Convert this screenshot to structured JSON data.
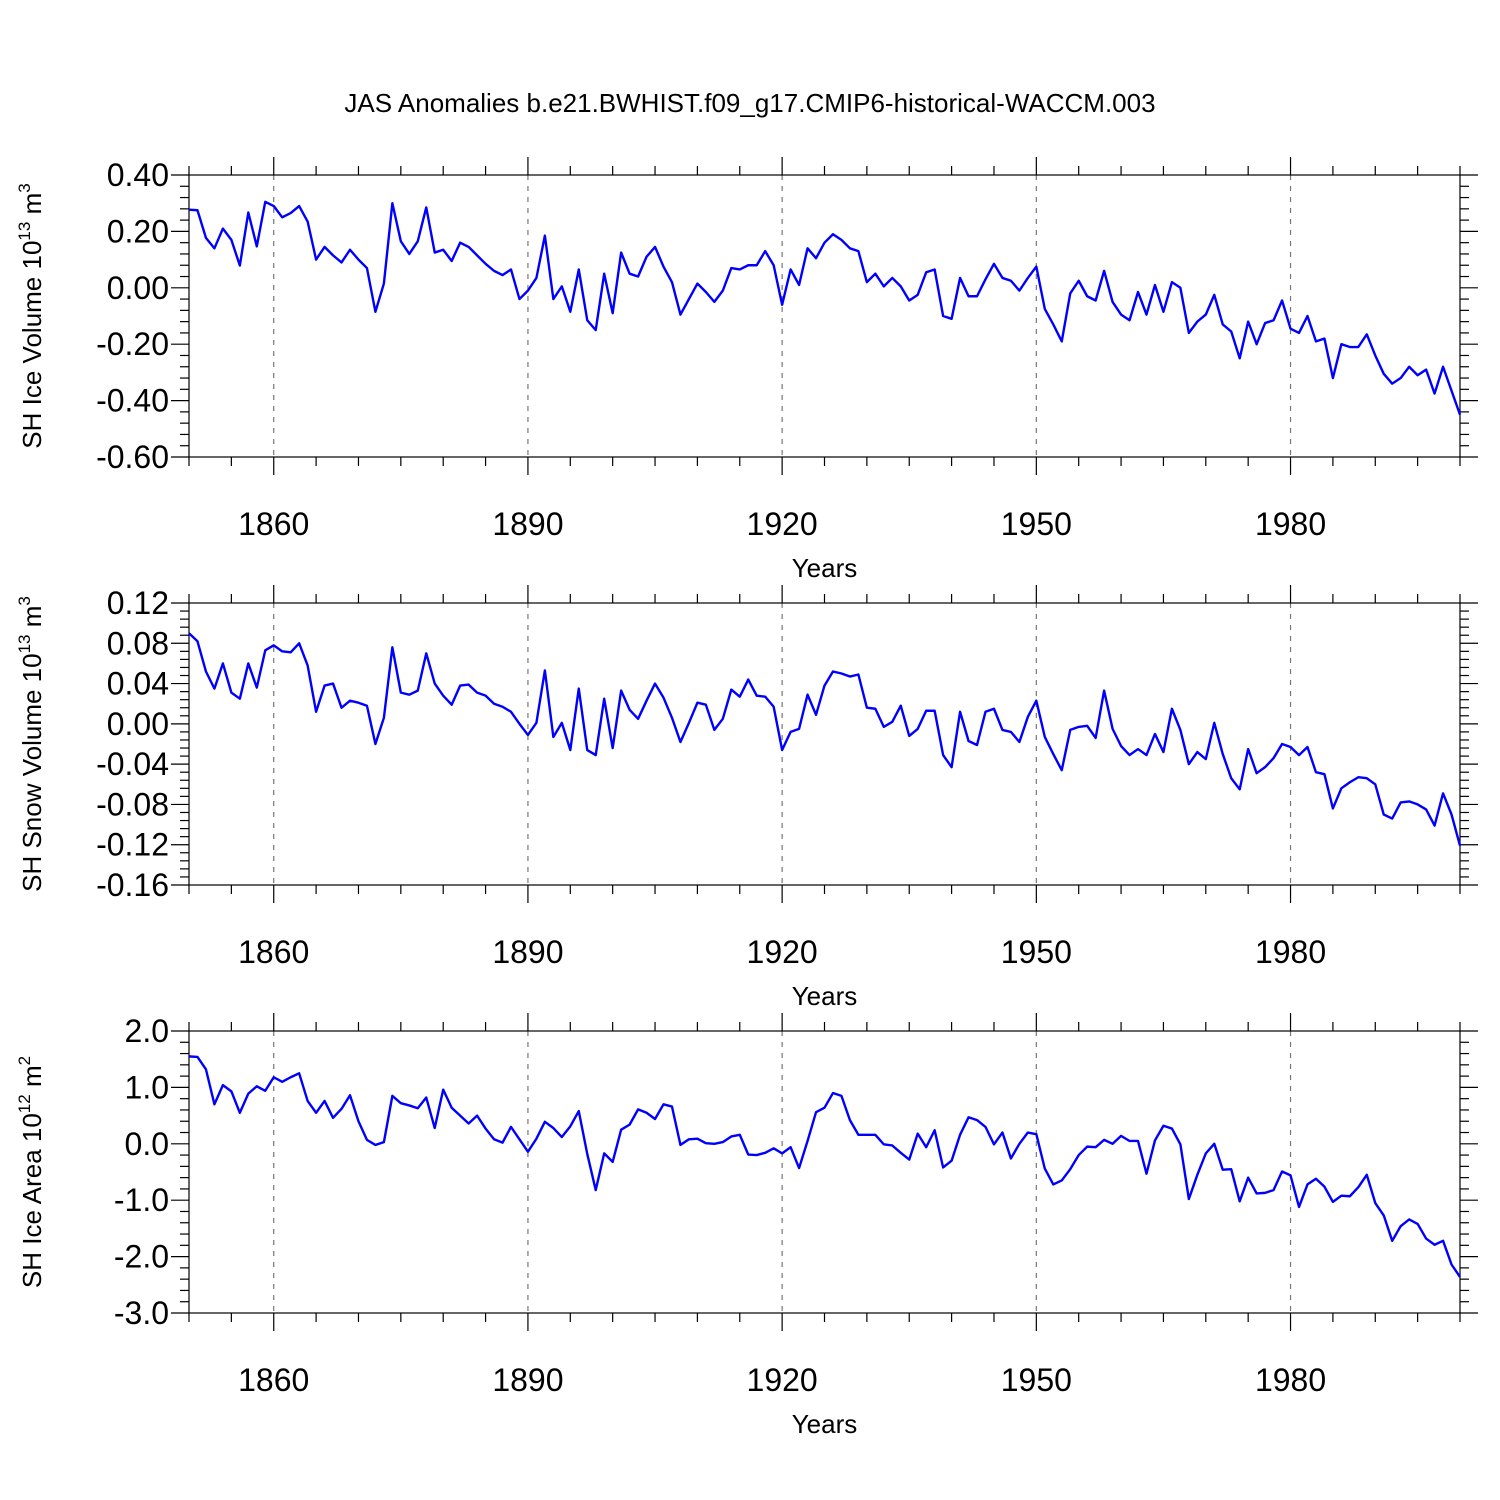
{
  "title": "JAS Anomalies b.e21.BWHIST.f09_g17.CMIP6-historical-WACCM.003",
  "colors": {
    "series": "#0000ff",
    "axis": "#000000",
    "grid": "#777777"
  },
  "chart_data": [
    {
      "type": "line",
      "id": "ice-volume",
      "ylabel_main": "SH Ice Volume 10",
      "ylabel_exp": "13",
      "ylabel_unit": " m",
      "ylabel_unit_exp": "3",
      "xlabel": "Years",
      "xlim": [
        1850,
        2000
      ],
      "ylim": [
        -0.6,
        0.4
      ],
      "grid": true,
      "x_ticks": [
        1860,
        1890,
        1920,
        1950,
        1980
      ],
      "x_tick_labels": [
        "1860",
        "1890",
        "1920",
        "1950",
        "1980"
      ],
      "y_ticks": [
        0.4,
        0.2,
        0.0,
        -0.2,
        -0.4,
        -0.6
      ],
      "y_tick_labels": [
        "0.40",
        "0.20",
        "0.00",
        "-0.20",
        "-0.40",
        "-0.60"
      ],
      "x_start": 1850,
      "values": [
        0.277,
        0.275,
        0.177,
        0.14,
        0.21,
        0.17,
        0.079,
        0.267,
        0.147,
        0.305,
        0.29,
        0.25,
        0.265,
        0.29,
        0.235,
        0.1,
        0.145,
        0.115,
        0.09,
        0.135,
        0.1,
        0.07,
        -0.085,
        0.015,
        0.3,
        0.165,
        0.12,
        0.165,
        0.285,
        0.125,
        0.135,
        0.095,
        0.16,
        0.145,
        0.115,
        0.085,
        0.06,
        0.045,
        0.065,
        -0.04,
        -0.01,
        0.035,
        0.185,
        -0.04,
        0.005,
        -0.085,
        0.065,
        -0.115,
        -0.15,
        0.05,
        -0.09,
        0.125,
        0.05,
        0.04,
        0.11,
        0.145,
        0.075,
        0.02,
        -0.095,
        -0.04,
        0.015,
        -0.015,
        -0.05,
        -0.01,
        0.07,
        0.065,
        0.08,
        0.08,
        0.13,
        0.08,
        -0.06,
        0.065,
        0.01,
        0.14,
        0.105,
        0.16,
        0.19,
        0.17,
        0.14,
        0.13,
        0.02,
        0.05,
        0.005,
        0.035,
        0.005,
        -0.045,
        -0.025,
        0.055,
        0.065,
        -0.1,
        -0.11,
        0.035,
        -0.03,
        -0.03,
        0.03,
        0.085,
        0.035,
        0.025,
        -0.01,
        0.035,
        0.075,
        -0.075,
        -0.13,
        -0.19,
        -0.02,
        0.025,
        -0.03,
        -0.045,
        0.06,
        -0.05,
        -0.095,
        -0.115,
        -0.015,
        -0.095,
        0.01,
        -0.085,
        0.02,
        0.0,
        -0.16,
        -0.12,
        -0.095,
        -0.025,
        -0.13,
        -0.155,
        -0.25,
        -0.12,
        -0.2,
        -0.125,
        -0.115,
        -0.045,
        -0.145,
        -0.16,
        -0.1,
        -0.19,
        -0.18,
        -0.32,
        -0.2,
        -0.21,
        -0.21,
        -0.165,
        -0.24,
        -0.305,
        -0.34,
        -0.32,
        -0.28,
        -0.31,
        -0.29,
        -0.375,
        -0.28,
        -0.365,
        -0.45
      ]
    },
    {
      "type": "line",
      "id": "snow-volume",
      "ylabel_main": "SH Snow Volume 10",
      "ylabel_exp": "13",
      "ylabel_unit": " m",
      "ylabel_unit_exp": "3",
      "xlabel": "Years",
      "xlim": [
        1850,
        2000
      ],
      "ylim": [
        -0.16,
        0.12
      ],
      "grid": true,
      "x_ticks": [
        1860,
        1890,
        1920,
        1950,
        1980
      ],
      "x_tick_labels": [
        "1860",
        "1890",
        "1920",
        "1950",
        "1980"
      ],
      "y_ticks": [
        0.12,
        0.08,
        0.04,
        0.0,
        -0.04,
        -0.08,
        -0.12,
        -0.16
      ],
      "y_tick_labels": [
        "0.12",
        "0.08",
        "0.04",
        "0.00",
        "-0.04",
        "-0.08",
        "-0.12",
        "-0.16"
      ],
      "x_start": 1850,
      "values": [
        0.09,
        0.082,
        0.052,
        0.035,
        0.06,
        0.031,
        0.025,
        0.06,
        0.036,
        0.073,
        0.078,
        0.072,
        0.071,
        0.08,
        0.058,
        0.012,
        0.038,
        0.04,
        0.016,
        0.023,
        0.021,
        0.018,
        -0.02,
        0.006,
        0.076,
        0.031,
        0.029,
        0.033,
        0.07,
        0.04,
        0.028,
        0.019,
        0.038,
        0.039,
        0.031,
        0.028,
        0.02,
        0.017,
        0.012,
        0.0,
        -0.011,
        0.001,
        0.053,
        -0.013,
        0.001,
        -0.026,
        0.035,
        -0.026,
        -0.031,
        0.025,
        -0.024,
        0.033,
        0.014,
        0.005,
        0.023,
        0.04,
        0.026,
        0.006,
        -0.018,
        0.001,
        0.021,
        0.019,
        -0.006,
        0.005,
        0.034,
        0.027,
        0.044,
        0.028,
        0.027,
        0.017,
        -0.026,
        -0.008,
        -0.005,
        0.029,
        0.009,
        0.038,
        0.052,
        0.05,
        0.047,
        0.049,
        0.016,
        0.015,
        -0.003,
        0.002,
        0.018,
        -0.012,
        -0.005,
        0.013,
        0.013,
        -0.031,
        -0.043,
        0.012,
        -0.017,
        -0.021,
        0.012,
        0.015,
        -0.006,
        -0.008,
        -0.018,
        0.007,
        0.023,
        -0.013,
        -0.03,
        -0.046,
        -0.006,
        -0.003,
        -0.002,
        -0.014,
        0.033,
        -0.005,
        -0.022,
        -0.031,
        -0.025,
        -0.031,
        -0.01,
        -0.028,
        0.015,
        -0.006,
        -0.04,
        -0.028,
        -0.035,
        0.001,
        -0.03,
        -0.054,
        -0.065,
        -0.025,
        -0.049,
        -0.043,
        -0.034,
        -0.02,
        -0.023,
        -0.031,
        -0.023,
        -0.048,
        -0.05,
        -0.084,
        -0.064,
        -0.058,
        -0.053,
        -0.054,
        -0.06,
        -0.09,
        -0.094,
        -0.078,
        -0.077,
        -0.08,
        -0.085,
        -0.101,
        -0.069,
        -0.09,
        -0.121
      ]
    },
    {
      "type": "line",
      "id": "ice-area",
      "ylabel_main": "SH Ice Area 10",
      "ylabel_exp": "12",
      "ylabel_unit": " m",
      "ylabel_unit_exp": "2",
      "xlabel": "Years",
      "xlim": [
        1850,
        2000
      ],
      "ylim": [
        -3.0,
        2.0
      ],
      "grid": true,
      "x_ticks": [
        1860,
        1890,
        1920,
        1950,
        1980
      ],
      "x_tick_labels": [
        "1860",
        "1890",
        "1920",
        "1950",
        "1980"
      ],
      "y_ticks": [
        2.0,
        1.0,
        0.0,
        -1.0,
        -2.0,
        -3.0
      ],
      "y_tick_labels": [
        "2.0",
        "1.0",
        "0.0",
        "-1.0",
        "-2.0",
        "-3.0"
      ],
      "x_start": 1850,
      "values": [
        1.55,
        1.54,
        1.32,
        0.7,
        1.04,
        0.93,
        0.55,
        0.89,
        1.02,
        0.94,
        1.18,
        1.1,
        1.18,
        1.25,
        0.76,
        0.55,
        0.76,
        0.46,
        0.62,
        0.86,
        0.4,
        0.07,
        -0.02,
        0.03,
        0.85,
        0.72,
        0.68,
        0.63,
        0.82,
        0.28,
        0.96,
        0.64,
        0.5,
        0.36,
        0.5,
        0.27,
        0.08,
        0.02,
        0.3,
        0.08,
        -0.14,
        0.09,
        0.39,
        0.28,
        0.12,
        0.31,
        0.58,
        -0.18,
        -0.82,
        -0.17,
        -0.32,
        0.25,
        0.34,
        0.61,
        0.55,
        0.44,
        0.7,
        0.66,
        -0.02,
        0.08,
        0.09,
        0.01,
        0.0,
        0.03,
        0.13,
        0.16,
        -0.19,
        -0.2,
        -0.16,
        -0.08,
        -0.17,
        -0.06,
        -0.43,
        0.05,
        0.56,
        0.64,
        0.9,
        0.85,
        0.42,
        0.16,
        0.16,
        0.16,
        -0.01,
        -0.03,
        -0.16,
        -0.28,
        0.18,
        -0.06,
        0.24,
        -0.42,
        -0.3,
        0.16,
        0.47,
        0.42,
        0.3,
        -0.01,
        0.2,
        -0.26,
        0.0,
        0.2,
        0.17,
        -0.44,
        -0.72,
        -0.65,
        -0.45,
        -0.2,
        -0.05,
        -0.06,
        0.07,
        0.0,
        0.14,
        0.05,
        0.05,
        -0.53,
        0.06,
        0.32,
        0.27,
        -0.01,
        -0.98,
        -0.55,
        -0.17,
        0.0,
        -0.46,
        -0.45,
        -1.02,
        -0.6,
        -0.88,
        -0.87,
        -0.82,
        -0.49,
        -0.56,
        -1.12,
        -0.72,
        -0.62,
        -0.76,
        -1.03,
        -0.92,
        -0.93,
        -0.77,
        -0.55,
        -1.05,
        -1.27,
        -1.72,
        -1.46,
        -1.34,
        -1.42,
        -1.68,
        -1.79,
        -1.72,
        -2.14,
        -2.36
      ]
    }
  ]
}
